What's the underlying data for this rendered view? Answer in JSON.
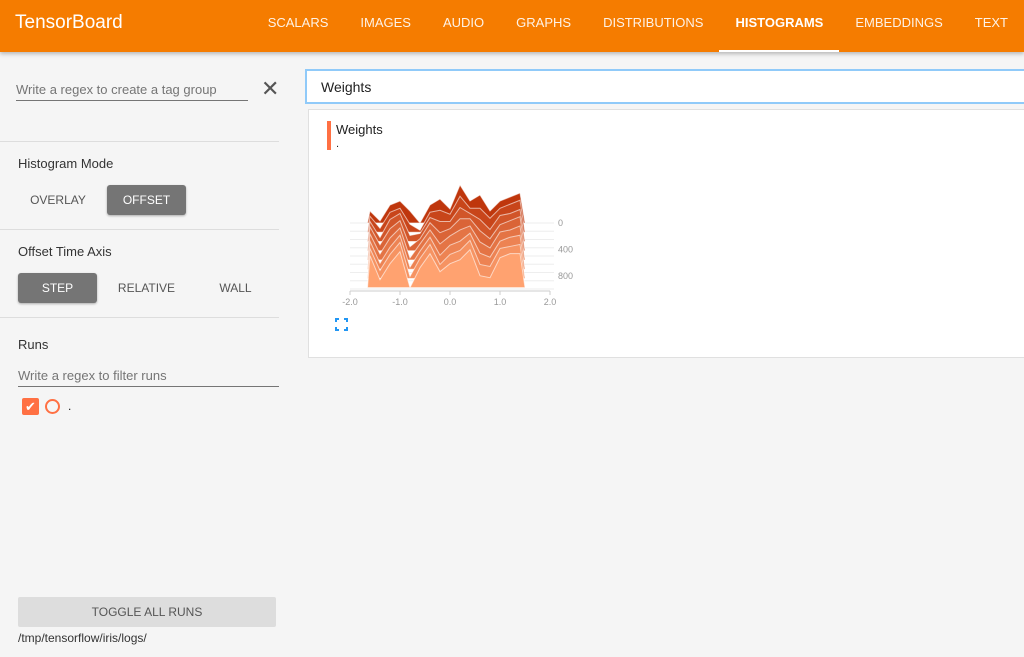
{
  "header": {
    "title": "TensorBoard",
    "tabs": [
      {
        "label": "SCALARS"
      },
      {
        "label": "IMAGES"
      },
      {
        "label": "AUDIO"
      },
      {
        "label": "GRAPHS"
      },
      {
        "label": "DISTRIBUTIONS"
      },
      {
        "label": "HISTOGRAMS",
        "active": true
      },
      {
        "label": "EMBEDDINGS"
      },
      {
        "label": "TEXT"
      }
    ]
  },
  "sidebar": {
    "tag_group_placeholder": "Write a regex to create a tag group",
    "close_icon": "close-icon",
    "histogram_mode": {
      "label": "Histogram Mode",
      "options": [
        "OVERLAY",
        "OFFSET"
      ],
      "selected": "OFFSET"
    },
    "offset_time_axis": {
      "label": "Offset Time Axis",
      "options": [
        "STEP",
        "RELATIVE",
        "WALL"
      ],
      "selected": "STEP"
    },
    "runs": {
      "label": "Runs",
      "filter_placeholder": "Write a regex to filter runs",
      "items": [
        {
          "name": ".",
          "checked": true,
          "color": "#ff7043"
        }
      ]
    },
    "toggle_all": "TOGGLE ALL RUNS",
    "logdir": "/tmp/tensorflow/iris/logs/"
  },
  "main": {
    "search_value": "Weights",
    "card": {
      "title": "Weights",
      "run": "."
    }
  },
  "chart_data": {
    "type": "area",
    "x_ticks": [
      "-2.0",
      "-1.0",
      "0.0",
      "1.0",
      "2.0"
    ],
    "xlim": [
      -2,
      2
    ],
    "y_ticks": [
      "0",
      "400",
      "800"
    ],
    "step_range": [
      0,
      1000
    ],
    "bins": [
      -1.6,
      -1.4,
      -1.2,
      -1.0,
      -0.8,
      -0.6,
      -0.4,
      -0.2,
      0.0,
      0.2,
      0.4,
      0.6,
      0.8,
      1.0,
      1.2,
      1.4
    ],
    "series": [
      {
        "step": 0,
        "values": [
          30,
          5,
          45,
          55,
          30,
          0,
          45,
          60,
          35,
          95,
          55,
          70,
          30,
          55,
          65,
          75
        ]
      },
      {
        "step": 140,
        "values": [
          40,
          10,
          50,
          60,
          20,
          5,
          50,
          55,
          45,
          90,
          60,
          60,
          35,
          60,
          70,
          80
        ]
      },
      {
        "step": 280,
        "values": [
          50,
          10,
          55,
          70,
          15,
          20,
          60,
          50,
          50,
          85,
          70,
          55,
          30,
          65,
          70,
          80
        ]
      },
      {
        "step": 420,
        "values": [
          60,
          15,
          55,
          75,
          10,
          30,
          70,
          45,
          55,
          80,
          80,
          50,
          30,
          65,
          75,
          85
        ]
      },
      {
        "step": 560,
        "values": [
          65,
          15,
          55,
          80,
          5,
          40,
          75,
          40,
          60,
          75,
          85,
          45,
          30,
          70,
          75,
          85
        ]
      },
      {
        "step": 700,
        "values": [
          70,
          15,
          55,
          85,
          5,
          45,
          80,
          35,
          60,
          70,
          90,
          40,
          30,
          70,
          80,
          85
        ]
      },
      {
        "step": 840,
        "values": [
          75,
          20,
          60,
          90,
          5,
          50,
          85,
          35,
          60,
          70,
          95,
          35,
          30,
          75,
          80,
          85
        ]
      },
      {
        "step": 980,
        "values": [
          80,
          20,
          60,
          90,
          0,
          50,
          85,
          40,
          60,
          70,
          95,
          30,
          25,
          75,
          85,
          85
        ]
      }
    ],
    "colors": {
      "back": "#bf360c",
      "front": "#ffa270"
    }
  }
}
